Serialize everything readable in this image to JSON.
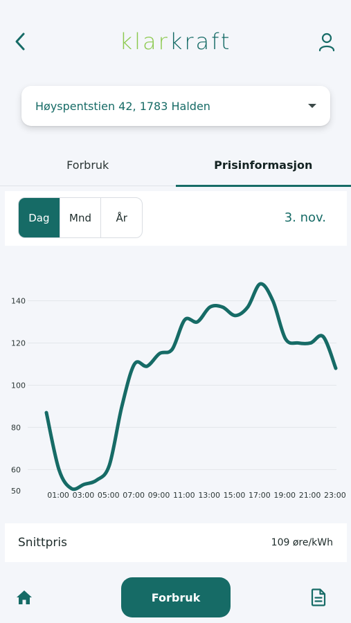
{
  "app": {
    "logo_part1": "klar",
    "logo_part2": "kraft"
  },
  "address": {
    "selected": "Høyspentstien 42, 1783 Halden"
  },
  "tabs": [
    {
      "label": "Forbruk",
      "active": false
    },
    {
      "label": "Prisinformasjon",
      "active": true
    }
  ],
  "period": {
    "options": [
      "Dag",
      "Mnd",
      "År"
    ],
    "selected": "Dag",
    "date": "3. nov."
  },
  "summary": {
    "label": "Snittpris",
    "value": "109 øre/kWh"
  },
  "bottom_nav": {
    "primary_label": "Forbruk"
  },
  "colors": {
    "brand": "#166b66",
    "logo_accent": "#8cc94e"
  },
  "chart_data": {
    "type": "line",
    "x_tick_labels": [
      "01:00",
      "03:00",
      "05:00",
      "07:00",
      "09:00",
      "11:00",
      "13:00",
      "15:00",
      "17:00",
      "19:00",
      "21:00",
      "23:00"
    ],
    "y_tick_labels": [
      "50",
      "60",
      "80",
      "100",
      "120",
      "140"
    ],
    "y_ticks": [
      50,
      60,
      80,
      100,
      120,
      140
    ],
    "ylim": [
      50,
      145
    ],
    "grid": true,
    "series": [
      {
        "color": "#166b66",
        "x": [
          0,
          1,
          2,
          3,
          4,
          5,
          6,
          7,
          8,
          9,
          10,
          11,
          12,
          13,
          14,
          15,
          16,
          17,
          18,
          19,
          20,
          21,
          22,
          23
        ],
        "values": [
          87,
          60,
          51,
          53,
          55,
          62,
          90,
          110,
          109,
          115,
          117,
          131,
          130,
          137,
          137,
          133,
          137,
          148,
          140,
          122,
          120,
          120,
          123,
          108
        ]
      }
    ]
  }
}
